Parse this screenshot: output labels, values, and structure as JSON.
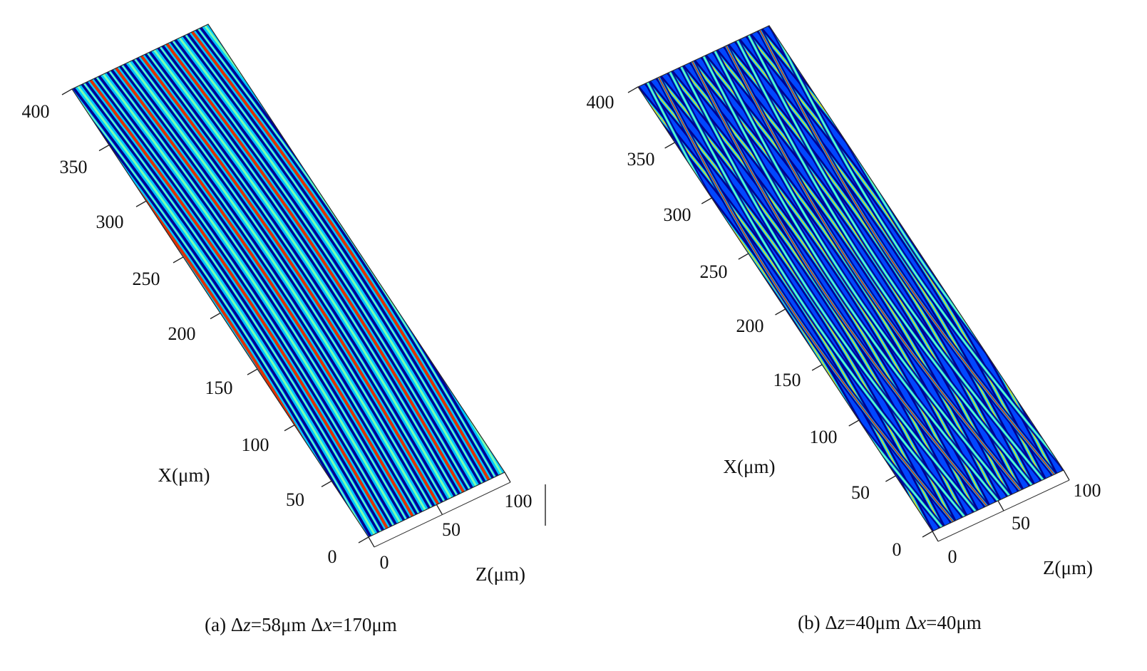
{
  "chart_data": [
    {
      "type": "heatmap",
      "id": "a",
      "caption": {
        "prefix": "(a)  Δ",
        "v1": "z",
        "mid": "=58μm  Δ",
        "v2": "x",
        "suffix": "=170μm"
      },
      "xlabel": "Z(μm)",
      "ylabel": "X(μm)",
      "z_ticks": [
        "0",
        "50",
        "100"
      ],
      "x_ticks": [
        "0",
        "50",
        "100",
        "150",
        "200",
        "250",
        "300",
        "350",
        "400"
      ],
      "zlim": [
        0,
        100
      ],
      "xlim": [
        0,
        400
      ],
      "fringe_pattern": "single-family-curved",
      "colormap": [
        "#00008f",
        "#0047ff",
        "#00c8ff",
        "#7dffb0",
        "#ffe000",
        "#e03000",
        "#8f0000"
      ]
    },
    {
      "type": "heatmap",
      "id": "b",
      "caption": {
        "prefix": "(b)  Δ",
        "v1": "z",
        "mid": "=40μm  Δ",
        "v2": "x",
        "suffix": "=40μm"
      },
      "xlabel": "Z(μm)",
      "ylabel": "X(μm)",
      "z_ticks": [
        "0",
        "50",
        "100"
      ],
      "x_ticks": [
        "0",
        "50",
        "100",
        "150",
        "200",
        "250",
        "300",
        "350",
        "400"
      ],
      "zlim": [
        0,
        100
      ],
      "xlim": [
        0,
        400
      ],
      "fringe_pattern": "crossed-two-family",
      "colormap": [
        "#00008f",
        "#0047ff",
        "#00c8ff",
        "#7dffb0",
        "#ffe000",
        "#e03000",
        "#8f0000"
      ]
    }
  ]
}
